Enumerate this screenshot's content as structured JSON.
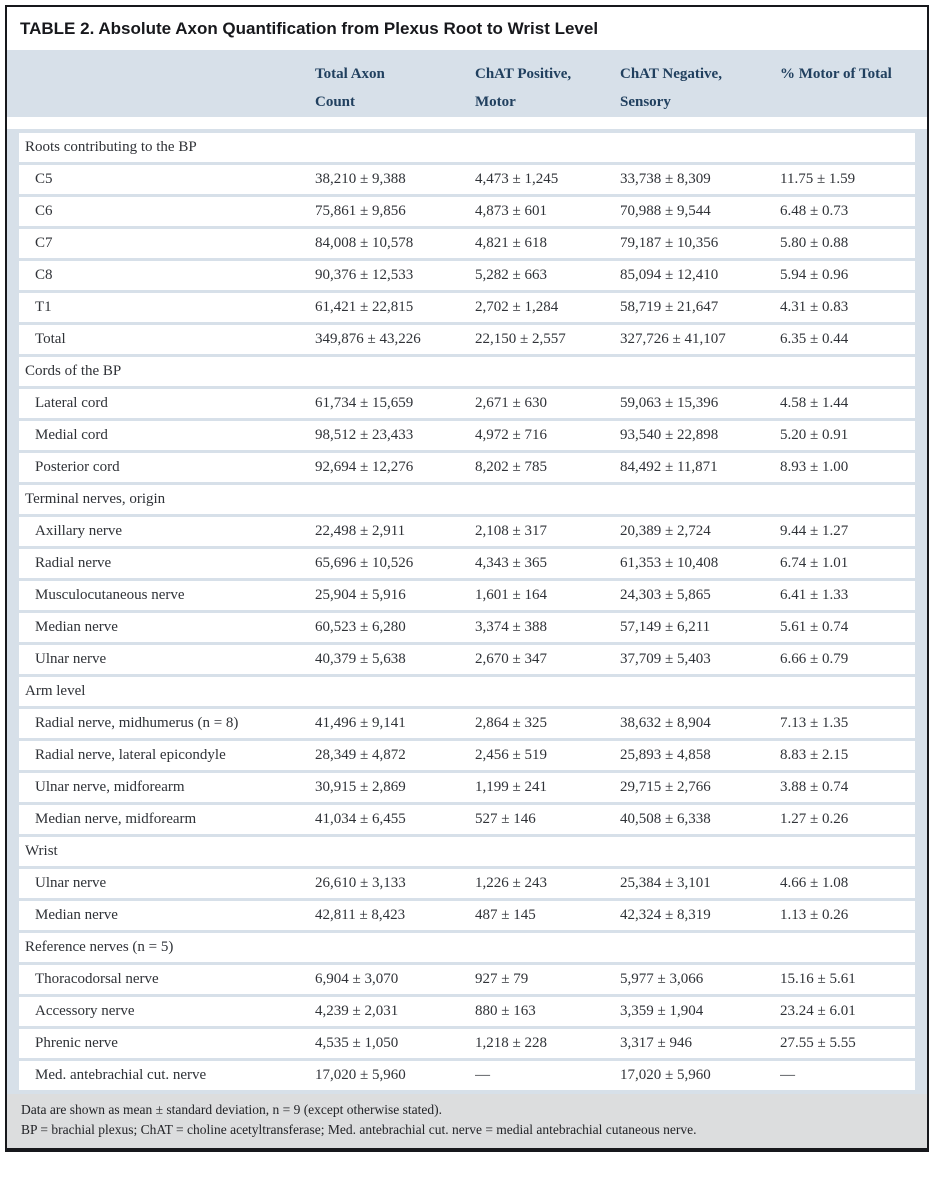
{
  "table": {
    "title": "TABLE 2. Absolute Axon Quantification from Plexus Root to Wrist Level",
    "columns": [
      "Total Axon Count",
      "ChAT Positive, Motor",
      "ChAT Negative, Sensory",
      "% Motor of Total"
    ],
    "sections": [
      {
        "label": "Roots contributing to the BP",
        "rows": [
          {
            "label": "C5",
            "total": "38,210 ± 9,388",
            "chat_pos": "4,473 ± 1,245",
            "chat_neg": "33,738 ± 8,309",
            "pct_motor": "11.75 ± 1.59"
          },
          {
            "label": "C6",
            "total": "75,861 ± 9,856",
            "chat_pos": "4,873 ± 601",
            "chat_neg": "70,988 ± 9,544",
            "pct_motor": "6.48 ± 0.73"
          },
          {
            "label": "C7",
            "total": "84,008 ± 10,578",
            "chat_pos": "4,821 ± 618",
            "chat_neg": "79,187 ± 10,356",
            "pct_motor": "5.80 ± 0.88"
          },
          {
            "label": "C8",
            "total": "90,376 ± 12,533",
            "chat_pos": "5,282 ± 663",
            "chat_neg": "85,094 ± 12,410",
            "pct_motor": "5.94 ± 0.96"
          },
          {
            "label": "T1",
            "total": "61,421 ± 22,815",
            "chat_pos": "2,702 ± 1,284",
            "chat_neg": "58,719 ± 21,647",
            "pct_motor": "4.31 ± 0.83"
          },
          {
            "label": "Total",
            "total": "349,876 ± 43,226",
            "chat_pos": "22,150 ± 2,557",
            "chat_neg": "327,726 ± 41,107",
            "pct_motor": "6.35 ± 0.44"
          }
        ]
      },
      {
        "label": "Cords of the BP",
        "rows": [
          {
            "label": "Lateral cord",
            "total": "61,734 ± 15,659",
            "chat_pos": "2,671 ± 630",
            "chat_neg": "59,063 ± 15,396",
            "pct_motor": "4.58 ± 1.44"
          },
          {
            "label": "Medial cord",
            "total": "98,512 ± 23,433",
            "chat_pos": "4,972 ± 716",
            "chat_neg": "93,540 ± 22,898",
            "pct_motor": "5.20 ± 0.91"
          },
          {
            "label": "Posterior cord",
            "total": "92,694 ± 12,276",
            "chat_pos": "8,202 ± 785",
            "chat_neg": "84,492 ± 11,871",
            "pct_motor": "8.93 ± 1.00"
          }
        ]
      },
      {
        "label": "Terminal nerves, origin",
        "rows": [
          {
            "label": "Axillary nerve",
            "total": "22,498 ± 2,911",
            "chat_pos": "2,108 ± 317",
            "chat_neg": "20,389 ± 2,724",
            "pct_motor": "9.44 ± 1.27"
          },
          {
            "label": "Radial nerve",
            "total": "65,696 ± 10,526",
            "chat_pos": "4,343 ± 365",
            "chat_neg": "61,353 ± 10,408",
            "pct_motor": "6.74 ± 1.01"
          },
          {
            "label": "Musculocutaneous nerve",
            "total": "25,904 ± 5,916",
            "chat_pos": "1,601 ± 164",
            "chat_neg": "24,303 ± 5,865",
            "pct_motor": "6.41 ± 1.33"
          },
          {
            "label": "Median nerve",
            "total": "60,523 ± 6,280",
            "chat_pos": "3,374 ± 388",
            "chat_neg": "57,149 ± 6,211",
            "pct_motor": "5.61 ± 0.74"
          },
          {
            "label": "Ulnar nerve",
            "total": "40,379 ± 5,638",
            "chat_pos": "2,670 ± 347",
            "chat_neg": "37,709 ± 5,403",
            "pct_motor": "6.66 ± 0.79"
          }
        ]
      },
      {
        "label": "Arm level",
        "rows": [
          {
            "label": "Radial nerve, midhumerus (n = 8)",
            "total": "41,496 ± 9,141",
            "chat_pos": "2,864 ± 325",
            "chat_neg": "38,632 ± 8,904",
            "pct_motor": "7.13 ± 1.35"
          },
          {
            "label": "Radial nerve, lateral epicondyle",
            "total": "28,349 ± 4,872",
            "chat_pos": "2,456 ± 519",
            "chat_neg": "25,893 ± 4,858",
            "pct_motor": "8.83 ± 2.15"
          },
          {
            "label": "Ulnar nerve, midforearm",
            "total": "30,915 ± 2,869",
            "chat_pos": "1,199 ± 241",
            "chat_neg": "29,715 ± 2,766",
            "pct_motor": "3.88 ± 0.74"
          },
          {
            "label": "Median nerve, midforearm",
            "total": "41,034 ± 6,455",
            "chat_pos": "527 ± 146",
            "chat_neg": "40,508 ± 6,338",
            "pct_motor": "1.27 ± 0.26"
          }
        ]
      },
      {
        "label": "Wrist",
        "rows": [
          {
            "label": "Ulnar nerve",
            "total": "26,610 ± 3,133",
            "chat_pos": "1,226 ± 243",
            "chat_neg": "25,384 ± 3,101",
            "pct_motor": "4.66 ± 1.08"
          },
          {
            "label": "Median nerve",
            "total": "42,811 ± 8,423",
            "chat_pos": "487 ± 145",
            "chat_neg": "42,324 ± 8,319",
            "pct_motor": "1.13 ± 0.26"
          }
        ]
      },
      {
        "label": "Reference nerves (n = 5)",
        "rows": [
          {
            "label": "Thoracodorsal nerve",
            "total": "6,904 ± 3,070",
            "chat_pos": "927 ± 79",
            "chat_neg": "5,977 ± 3,066",
            "pct_motor": "15.16 ± 5.61"
          },
          {
            "label": "Accessory nerve",
            "total": "4,239 ± 2,031",
            "chat_pos": "880 ± 163",
            "chat_neg": "3,359 ± 1,904",
            "pct_motor": "23.24 ± 6.01"
          },
          {
            "label": "Phrenic nerve",
            "total": "4,535 ± 1,050",
            "chat_pos": "1,218 ± 228",
            "chat_neg": "3,317 ± 946",
            "pct_motor": "27.55 ± 5.55"
          },
          {
            "label": "Med. antebrachial cut. nerve",
            "total": "17,020 ± 5,960",
            "chat_pos": "—",
            "chat_neg": "17,020 ± 5,960",
            "pct_motor": "—"
          }
        ]
      }
    ],
    "footnotes": [
      "Data are shown as mean ± standard deviation, n = 9 (except otherwise stated).",
      "BP = brachial plexus; ChAT = choline acetyltransferase; Med. antebrachial cut. nerve = medial antebrachial cutaneous nerve."
    ],
    "colors": {
      "header_band": "#d7e0e9",
      "footer_band": "#dcddde",
      "header_text": "#21405f",
      "body_text": "#2f3237",
      "border": "#17181c"
    }
  }
}
